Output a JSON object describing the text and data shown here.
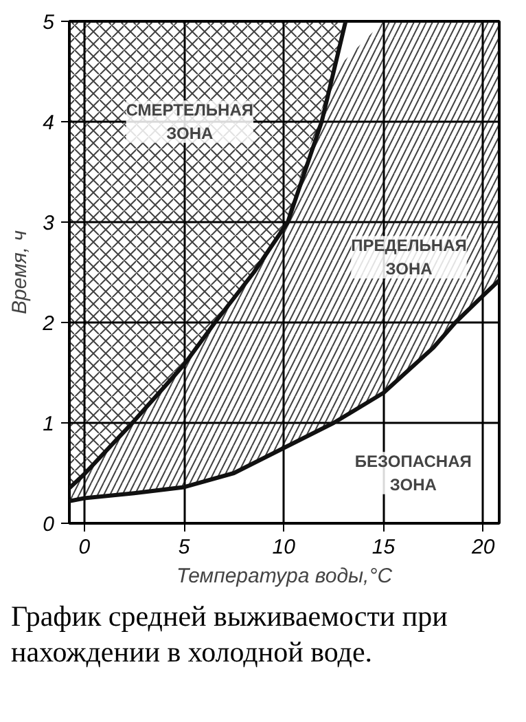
{
  "chart_data": {
    "type": "line",
    "xlabel": "Температура воды,°C",
    "ylabel": "Время, ч",
    "xlim": [
      -0.75,
      20.8
    ],
    "ylim": [
      0,
      5
    ],
    "xticks": [
      0,
      5,
      10,
      15,
      20
    ],
    "yticks": [
      0,
      1,
      2,
      3,
      4,
      5
    ],
    "grid": true,
    "series": [
      {
        "color": "#111111",
        "x": [
          -0.75,
          0,
          2.5,
          5,
          6.55,
          8.5,
          10.2,
          11.9,
          13.1
        ],
        "values": [
          0.35,
          0.49,
          1.02,
          1.58,
          2.0,
          2.5,
          3.0,
          4.0,
          5.0
        ],
        "lower": [
          0.35,
          0.49,
          1.02,
          1.58,
          2.0,
          2.5,
          3.0,
          4.0,
          5.0
        ],
        "upper": [
          5,
          5,
          5,
          5,
          5,
          5,
          5,
          5,
          5
        ]
      },
      {
        "color": "#111111",
        "x": [
          -0.75,
          0,
          2.5,
          5,
          7.5,
          10,
          12.5,
          15,
          17.5,
          18.6,
          20,
          20.8
        ],
        "values": [
          0.22,
          0.25,
          0.3,
          0.36,
          0.5,
          0.75,
          1.0,
          1.3,
          1.75,
          2.0,
          2.27,
          2.42
        ],
        "lower": [
          0.22,
          0.25,
          0.3,
          0.36,
          0.5,
          0.75,
          1.0,
          1.3,
          1.75,
          2.0,
          2.27,
          2.42
        ],
        "upper": [
          0.35,
          0.49,
          1.02,
          1.58,
          2.25,
          2.95,
          4.5,
          5,
          5,
          5,
          5,
          5
        ]
      }
    ],
    "annotations": [
      "СМЕРТЕЛЬНАЯ ЗОНА",
      "ПРЕДЕЛЬНАЯ ЗОНА",
      "БЕЗОПАСНАЯ ЗОНА",
      "График средней выживаемости при нахождении в холодной воде."
    ]
  }
}
